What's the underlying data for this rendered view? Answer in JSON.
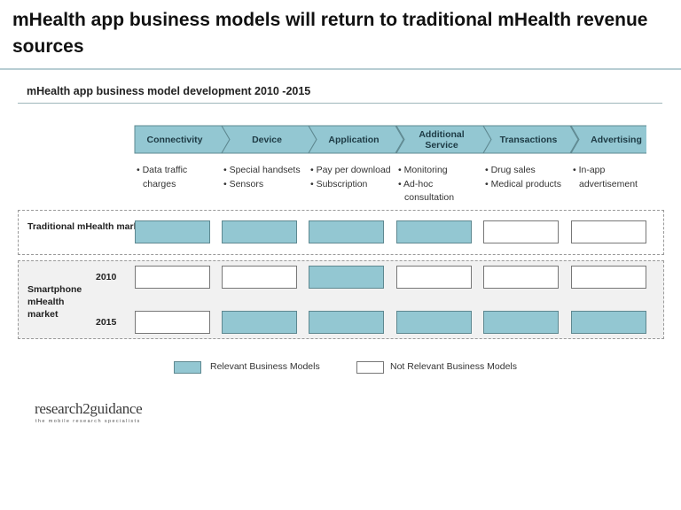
{
  "title": "mHealth app business models will return to traditional mHealth revenue sources",
  "subtitle": "mHealth app business model development 2010 -2015",
  "colors": {
    "relevant": "#93c7d2",
    "not_relevant": "#ffffff",
    "chevron": "#93c7d2"
  },
  "stages": [
    {
      "label": "Connectivity",
      "bullets": [
        "Data traffic charges"
      ]
    },
    {
      "label": "Device",
      "bullets": [
        "Special handsets",
        "Sensors"
      ]
    },
    {
      "label": "Application",
      "bullets": [
        "Pay per download",
        "Subscription"
      ]
    },
    {
      "label": "Additional Service",
      "bullets": [
        "Monitoring",
        "Ad-hoc consultation"
      ]
    },
    {
      "label": "Transactions",
      "bullets": [
        "Drug sales",
        "Medical products"
      ]
    },
    {
      "label": "Advertising",
      "bullets": [
        "In-app advertisement"
      ]
    }
  ],
  "rows": [
    {
      "group": "Traditional mHealth market",
      "year": "",
      "relevant": [
        true,
        true,
        true,
        true,
        false,
        false
      ]
    },
    {
      "group": "Smartphone mHealth market",
      "year": "2010",
      "relevant": [
        false,
        false,
        true,
        false,
        false,
        false
      ]
    },
    {
      "group": "Smartphone mHealth market",
      "year": "2015",
      "relevant": [
        false,
        true,
        true,
        true,
        true,
        true
      ]
    }
  ],
  "groups": {
    "traditional": "Traditional mHealth market",
    "smartphone": "Smartphone mHealth market"
  },
  "legend": {
    "relevant": "Relevant Business Models",
    "not_relevant": "Not Relevant Business Models"
  },
  "logo": {
    "name": "research2guidance",
    "tagline": "the mobile research specialists"
  }
}
